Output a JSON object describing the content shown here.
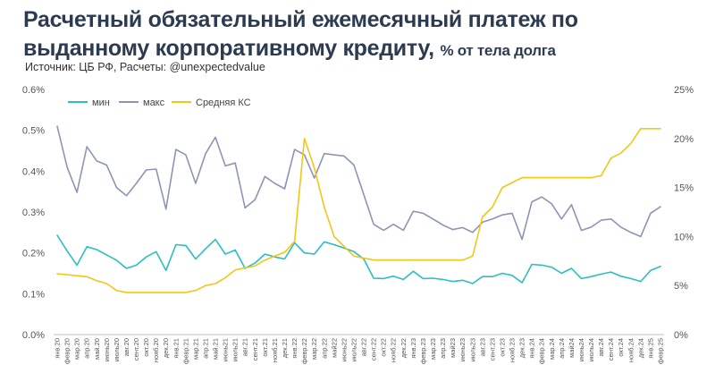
{
  "header": {
    "title_main": "Расчетный обязательный ежемесячный платеж по выданному корпоративному кредиту, ",
    "title_unit": "% от тела долга",
    "source": "Источник: ЦБ РФ, Расчеты: @unexpectedvalue"
  },
  "chart_data": {
    "type": "line",
    "categories": [
      "янв.20",
      "февр.20",
      "мар.20",
      "апр.20",
      "май.20",
      "июнь20",
      "июль20",
      "авг.20",
      "сент.20",
      "окт.20",
      "нояб.20",
      "дек.20",
      "янв.21",
      "февр.21",
      "мар.21",
      "апр.21",
      "май.21",
      "июнь21",
      "июль21",
      "авг.21",
      "сент.21",
      "окт.21",
      "нояб.21",
      "дек.21",
      "янв.22",
      "февр.22",
      "мар.22",
      "апр.22",
      "май22",
      "июнь22",
      "июль22",
      "авг.22",
      "сент.22",
      "окт.22",
      "нояб.22",
      "дек.22",
      "янв.23",
      "февр.23",
      "мар.23",
      "апр.23",
      "май23",
      "июнь23",
      "июль23",
      "авг.23",
      "сент.23",
      "окт.23",
      "нояб.23",
      "дек.23",
      "янв.24",
      "февр.24",
      "мар.24",
      "апр.24",
      "май24",
      "июнь24",
      "июль24",
      "авг.24",
      "сент.24",
      "окт.24",
      "нояб.24",
      "дек.24",
      "янв.25",
      "февр.25"
    ],
    "y_left": {
      "ticks": [
        "0.0%",
        "0.1%",
        "0.2%",
        "0.3%",
        "0.4%",
        "0.5%",
        "0.6%"
      ],
      "min": 0,
      "max": 0.6
    },
    "y_right": {
      "ticks": [
        "0%",
        "5%",
        "10%",
        "15%",
        "20%",
        "25%"
      ],
      "min": 0,
      "max": 25
    },
    "grid": false,
    "legend_position": "top-left",
    "series": [
      {
        "name": "мин",
        "axis": "left",
        "color": "#2bbfbf",
        "values": [
          0.243,
          0.205,
          0.17,
          0.215,
          0.208,
          0.195,
          0.182,
          0.162,
          0.17,
          0.19,
          0.203,
          0.157,
          0.22,
          0.218,
          0.185,
          0.21,
          0.233,
          0.197,
          0.207,
          0.162,
          0.175,
          0.197,
          0.19,
          0.185,
          0.225,
          0.2,
          0.197,
          0.227,
          0.22,
          0.212,
          0.203,
          0.185,
          0.138,
          0.137,
          0.143,
          0.135,
          0.155,
          0.137,
          0.138,
          0.135,
          0.13,
          0.133,
          0.125,
          0.142,
          0.142,
          0.15,
          0.145,
          0.127,
          0.172,
          0.17,
          0.165,
          0.15,
          0.162,
          0.137,
          0.142,
          0.148,
          0.153,
          0.143,
          0.137,
          0.13,
          0.157,
          0.167
        ]
      },
      {
        "name": "макс",
        "axis": "left",
        "color": "#8c95b3",
        "values": [
          0.51,
          0.41,
          0.348,
          0.46,
          0.425,
          0.415,
          0.36,
          0.34,
          0.37,
          0.403,
          0.405,
          0.307,
          0.453,
          0.44,
          0.37,
          0.443,
          0.483,
          0.413,
          0.42,
          0.31,
          0.33,
          0.387,
          0.37,
          0.357,
          0.453,
          0.44,
          0.383,
          0.443,
          0.44,
          0.437,
          0.415,
          0.343,
          0.27,
          0.255,
          0.27,
          0.255,
          0.302,
          0.297,
          0.283,
          0.268,
          0.257,
          0.262,
          0.25,
          0.275,
          0.283,
          0.293,
          0.297,
          0.233,
          0.325,
          0.337,
          0.32,
          0.283,
          0.318,
          0.255,
          0.263,
          0.28,
          0.283,
          0.263,
          0.25,
          0.24,
          0.297,
          0.313
        ]
      },
      {
        "name": "Средняя КС",
        "axis": "right",
        "color": "#f5c518",
        "values": [
          6.2,
          6.1,
          6.0,
          5.9,
          5.5,
          5.2,
          4.5,
          4.3,
          4.3,
          4.3,
          4.3,
          4.3,
          4.3,
          4.3,
          4.5,
          5.0,
          5.2,
          5.8,
          6.6,
          6.8,
          7.0,
          7.6,
          8.0,
          8.4,
          9.5,
          20.0,
          17.0,
          13.0,
          10.0,
          9.0,
          8.0,
          7.8,
          7.6,
          7.6,
          7.6,
          7.6,
          7.6,
          7.6,
          7.6,
          7.6,
          7.6,
          7.6,
          8.0,
          12.0,
          13.0,
          15.0,
          15.5,
          16.0,
          16.0,
          16.0,
          16.0,
          16.0,
          16.0,
          16.0,
          16.0,
          16.2,
          18.0,
          18.5,
          19.5,
          21.0,
          21.0,
          21.0
        ]
      }
    ]
  }
}
